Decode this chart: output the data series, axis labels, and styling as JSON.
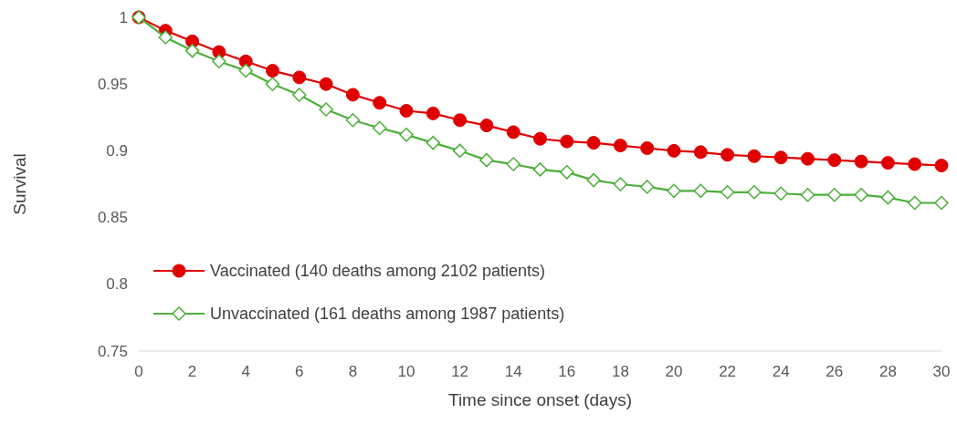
{
  "chart_data": {
    "type": "line",
    "xlabel": "Time since onset (days)",
    "ylabel": "Survival",
    "x": [
      0,
      1,
      2,
      3,
      4,
      5,
      6,
      7,
      8,
      9,
      10,
      11,
      12,
      13,
      14,
      15,
      16,
      17,
      18,
      19,
      20,
      21,
      22,
      23,
      24,
      25,
      26,
      27,
      28,
      29,
      30
    ],
    "xlim": [
      0,
      30
    ],
    "xticks": [
      0,
      2,
      4,
      6,
      8,
      10,
      12,
      14,
      16,
      18,
      20,
      22,
      24,
      26,
      28,
      30
    ],
    "ylim": [
      0.75,
      1
    ],
    "yticks": [
      0.75,
      0.8,
      0.85,
      0.9,
      0.95,
      1
    ],
    "grid": false,
    "legend": "left",
    "line_style": "solid",
    "series": [
      {
        "name": "Vaccinated (140 deaths among 2102 patients)",
        "color": "#e00000",
        "marker": "circle",
        "values": [
          1,
          0.99,
          0.982,
          0.974,
          0.967,
          0.96,
          0.955,
          0.95,
          0.942,
          0.936,
          0.93,
          0.928,
          0.923,
          0.919,
          0.914,
          0.909,
          0.907,
          0.906,
          0.904,
          0.902,
          0.9,
          0.899,
          0.897,
          0.896,
          0.895,
          0.894,
          0.893,
          0.892,
          0.891,
          0.89,
          0.889
        ]
      },
      {
        "name": "Unvaccinated (161 deaths among 1987 patients)",
        "color": "#4caf3a",
        "marker": "diamond",
        "values": [
          1,
          0.985,
          0.975,
          0.967,
          0.96,
          0.95,
          0.942,
          0.931,
          0.923,
          0.917,
          0.912,
          0.906,
          0.9,
          0.893,
          0.89,
          0.886,
          0.884,
          0.878,
          0.875,
          0.873,
          0.87,
          0.87,
          0.869,
          0.869,
          0.868,
          0.867,
          0.867,
          0.867,
          0.865,
          0.861,
          0.861
        ]
      }
    ]
  }
}
